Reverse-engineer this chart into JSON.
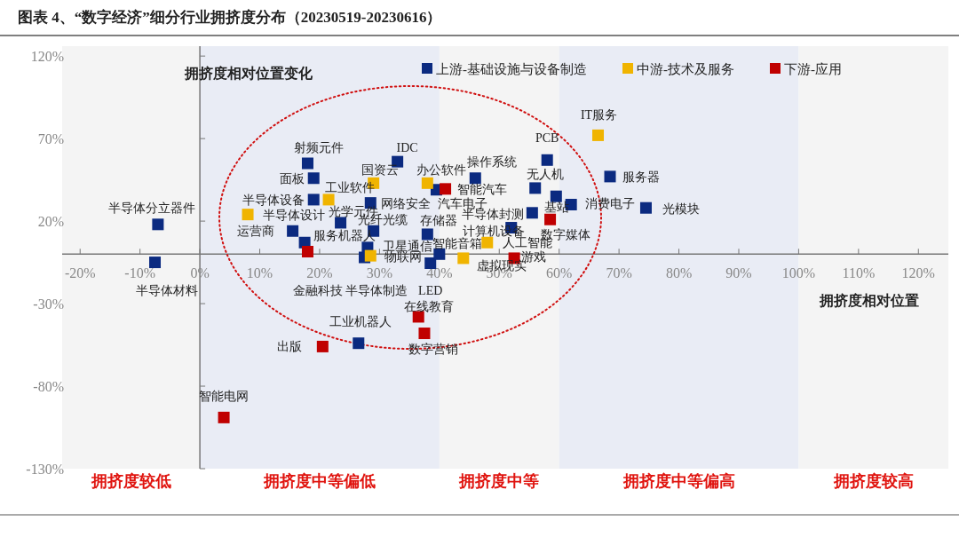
{
  "chart_data": {
    "type": "scatter",
    "title": "图表 4、“数字经济”细分行业拥挤度分布（20230519-20230616）",
    "xlabel": "拥挤度相对位置",
    "ylabel": "拥挤度相对位置变化",
    "xlim": [
      -23,
      125
    ],
    "ylim": [
      -130,
      126
    ],
    "xticks": [
      {
        "value": -20,
        "label": "-20%"
      },
      {
        "value": -10,
        "label": "-10%"
      },
      {
        "value": 0,
        "label": "0%"
      },
      {
        "value": 10,
        "label": "10%"
      },
      {
        "value": 20,
        "label": "20%"
      },
      {
        "value": 30,
        "label": "30%"
      },
      {
        "value": 40,
        "label": "40%"
      },
      {
        "value": 50,
        "label": "50%"
      },
      {
        "value": 60,
        "label": "60%"
      },
      {
        "value": 70,
        "label": "70%"
      },
      {
        "value": 80,
        "label": "80%"
      },
      {
        "value": 90,
        "label": "90%"
      },
      {
        "value": 100,
        "label": "100%"
      },
      {
        "value": 110,
        "label": "110%"
      },
      {
        "value": 120,
        "label": "120%"
      }
    ],
    "yticks": [
      {
        "value": 120,
        "label": "120%"
      },
      {
        "value": 70,
        "label": "70%"
      },
      {
        "value": 20,
        "label": "20%"
      },
      {
        "value": -30,
        "label": "-30%"
      },
      {
        "value": -80,
        "label": "-80%"
      },
      {
        "value": -130,
        "label": "-130%"
      }
    ],
    "legend": "top right",
    "marker": "square",
    "series": [
      {
        "name": "上游-基础设施与设备制造",
        "color": "#0b2a80",
        "x": [
          -7,
          -7.5,
          18,
          19,
          19,
          15.5,
          17.5,
          23.5,
          29,
          28.5,
          38,
          28,
          27.5,
          38.5,
          40,
          39.5,
          33,
          46,
          58,
          56,
          68.5,
          59.5,
          62,
          74.5,
          55.5,
          52,
          26.5
        ],
        "values": [
          18,
          -5,
          55,
          46,
          33,
          14,
          7,
          19,
          14,
          31,
          12,
          4,
          -2,
          -5.5,
          0,
          39,
          56,
          46,
          57,
          40,
          47,
          35,
          30,
          28,
          25,
          16,
          -54
        ]
      },
      {
        "name": "中游-技术及服务",
        "color": "#f0b400",
        "x": [
          8,
          21.5,
          29,
          28.5,
          38,
          66.5,
          48,
          44
        ],
        "values": [
          24,
          33,
          43,
          -1,
          43,
          72,
          7,
          -2.5
        ]
      },
      {
        "name": "下游-应用",
        "color": "#c00000",
        "x": [
          18,
          41,
          58.5,
          52.5,
          36.5,
          37.5,
          20.5,
          4
        ],
        "values": [
          1.5,
          39.5,
          21,
          -2.5,
          -38,
          -48,
          -56,
          -99
        ]
      }
    ],
    "bands": [
      {
        "axis": "x",
        "from": -23,
        "to": 0,
        "label": "拥挤度较低",
        "color": "#f4f4f4"
      },
      {
        "axis": "x",
        "from": 0,
        "to": 40,
        "label": "拥挤度中等偏低",
        "color": "#e9ecf5"
      },
      {
        "axis": "x",
        "from": 40,
        "to": 60,
        "label": "拥挤度中等",
        "color": "#f4f4f4"
      },
      {
        "axis": "x",
        "from": 60,
        "to": 100,
        "label": "拥挤度中等偏高",
        "color": "#e9ecf5"
      },
      {
        "axis": "x",
        "from": 100,
        "to": 125,
        "label": "拥挤度较高",
        "color": "#f4f4f4"
      }
    ],
    "annotations": [
      {
        "text": "半导体分立器件",
        "x": -7,
        "y": 18
      },
      {
        "text": "半导体材料",
        "x": -7.5,
        "y": -5
      },
      {
        "text": "射频元件",
        "x": 18,
        "y": 55
      },
      {
        "text": "面板",
        "x": 19,
        "y": 46
      },
      {
        "text": "半导体设备",
        "x": 19,
        "y": 33
      },
      {
        "text": "工业软件",
        "x": 21.5,
        "y": 33
      },
      {
        "text": "国资云",
        "x": 29,
        "y": 43
      },
      {
        "text": "IDC",
        "x": 33,
        "y": 56
      },
      {
        "text": "半导体设计",
        "x": 15.5,
        "y": 14
      },
      {
        "text": "光学元件",
        "x": 23.5,
        "y": 19
      },
      {
        "text": "运营商",
        "x": 8,
        "y": 24
      },
      {
        "text": "服务机器人",
        "x": 17.5,
        "y": 7
      },
      {
        "text": "网络安全",
        "x": 28.5,
        "y": 31
      },
      {
        "text": "汽车电子",
        "x": 39.5,
        "y": 39
      },
      {
        "text": "光纤光缆",
        "x": 29,
        "y": 14
      },
      {
        "text": "存储器",
        "x": 38,
        "y": 12
      },
      {
        "text": "卫星通信",
        "x": 28,
        "y": 4
      },
      {
        "text": "智能音箱",
        "x": 40,
        "y": 0
      },
      {
        "text": "物联网",
        "x": 28.5,
        "y": -1
      },
      {
        "text": "半导体制造",
        "x": 27.5,
        "y": -2
      },
      {
        "text": "金融科技",
        "x": 18,
        "y": 1.5
      },
      {
        "text": "LED",
        "x": 38.5,
        "y": -5.5
      },
      {
        "text": "办公软件",
        "x": 38,
        "y": 43
      },
      {
        "text": "智能汽车",
        "x": 41,
        "y": 39.5
      },
      {
        "text": "操作系统",
        "x": 46,
        "y": 46
      },
      {
        "text": "PCB",
        "x": 58,
        "y": 57
      },
      {
        "text": "IT服务",
        "x": 66.5,
        "y": 72
      },
      {
        "text": "无人机",
        "x": 56,
        "y": 40
      },
      {
        "text": "服务器",
        "x": 68.5,
        "y": 47
      },
      {
        "text": "基站",
        "x": 59.5,
        "y": 35
      },
      {
        "text": "消费电子",
        "x": 62,
        "y": 30
      },
      {
        "text": "光模块",
        "x": 74.5,
        "y": 28
      },
      {
        "text": "半导体封测",
        "x": 55.5,
        "y": 25
      },
      {
        "text": "数字媒体",
        "x": 58.5,
        "y": 21
      },
      {
        "text": "计算机设备",
        "x": 52,
        "y": 16
      },
      {
        "text": "人工智能",
        "x": 48,
        "y": 7
      },
      {
        "text": "虚拟现实",
        "x": 44,
        "y": -2.5
      },
      {
        "text": "游戏",
        "x": 52.5,
        "y": -2.5
      },
      {
        "text": "在线教育",
        "x": 36.5,
        "y": -38
      },
      {
        "text": "数字营销",
        "x": 37.5,
        "y": -48
      },
      {
        "text": "工业机器人",
        "x": 26.5,
        "y": -54
      },
      {
        "text": "出版",
        "x": 20.5,
        "y": -56
      },
      {
        "text": "智能电网",
        "x": 4,
        "y": -99
      }
    ]
  }
}
